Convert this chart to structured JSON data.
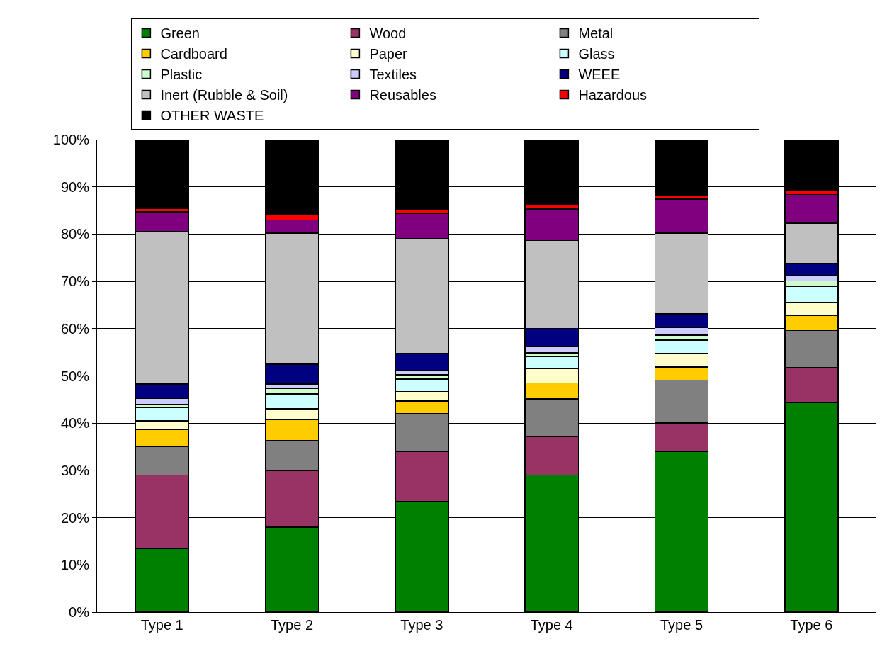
{
  "chart_data": {
    "type": "bar",
    "stacked": true,
    "categories": [
      "Type 1",
      "Type 2",
      "Type 3",
      "Type 4",
      "Type 5",
      "Type 6"
    ],
    "ylim": [
      0,
      100
    ],
    "yticks": [
      {
        "value": 0,
        "label": "0%"
      },
      {
        "value": 10,
        "label": "10%"
      },
      {
        "value": 20,
        "label": "20%"
      },
      {
        "value": 30,
        "label": "30%"
      },
      {
        "value": 40,
        "label": "40%"
      },
      {
        "value": 50,
        "label": "50%"
      },
      {
        "value": 60,
        "label": "60%"
      },
      {
        "value": 70,
        "label": "70%"
      },
      {
        "value": 80,
        "label": "80%"
      },
      {
        "value": 90,
        "label": "90%"
      },
      {
        "value": 100,
        "label": "100%"
      }
    ],
    "grid": "y",
    "legend": "top",
    "series": [
      {
        "name": "Green",
        "color": "#008000",
        "values": [
          13.5,
          18,
          23.5,
          29,
          34,
          44.3
        ]
      },
      {
        "name": "Wood",
        "color": "#993366",
        "values": [
          15.5,
          12,
          10.5,
          8.2,
          6,
          7.5
        ]
      },
      {
        "name": "Metal",
        "color": "#808080",
        "values": [
          6,
          6.3,
          8,
          7.9,
          9.1,
          7.8
        ]
      },
      {
        "name": "Cardboard",
        "color": "#ffcc00",
        "values": [
          3.7,
          4.5,
          2.7,
          3.4,
          2.8,
          3.2
        ]
      },
      {
        "name": "Paper",
        "color": "#ffffcc",
        "values": [
          1.8,
          2.2,
          2,
          3.1,
          2.8,
          2.8
        ]
      },
      {
        "name": "Glass",
        "color": "#ccffff",
        "values": [
          2.8,
          3.2,
          2.6,
          2.5,
          2.9,
          3.4
        ]
      },
      {
        "name": "Plastic",
        "color": "#ccffcc",
        "values": [
          0.7,
          1.1,
          0.9,
          0.8,
          1,
          1.1
        ]
      },
      {
        "name": "Textiles",
        "color": "#ccccff",
        "values": [
          1.2,
          1,
          0.9,
          1.3,
          1.6,
          1.1
        ]
      },
      {
        "name": "WEEE",
        "color": "#000080",
        "values": [
          3.1,
          4.2,
          3.7,
          3.8,
          2.9,
          2.6
        ]
      },
      {
        "name": "Inert (Rubble & Soil)",
        "color": "#c0c0c0",
        "values": [
          32.2,
          27.7,
          24.3,
          18.6,
          17.1,
          8.5
        ]
      },
      {
        "name": "Reusables",
        "color": "#800080",
        "values": [
          4.2,
          2.8,
          5.2,
          6.7,
          7.2,
          6.1
        ]
      },
      {
        "name": "Hazardous",
        "color": "#ff0000",
        "values": [
          0.7,
          1,
          1,
          0.8,
          0.9,
          0.8
        ]
      },
      {
        "name": "OTHER WASTE",
        "color": "#000000",
        "values": [
          14.6,
          16,
          14.7,
          13.9,
          11.7,
          10.8
        ]
      }
    ]
  }
}
